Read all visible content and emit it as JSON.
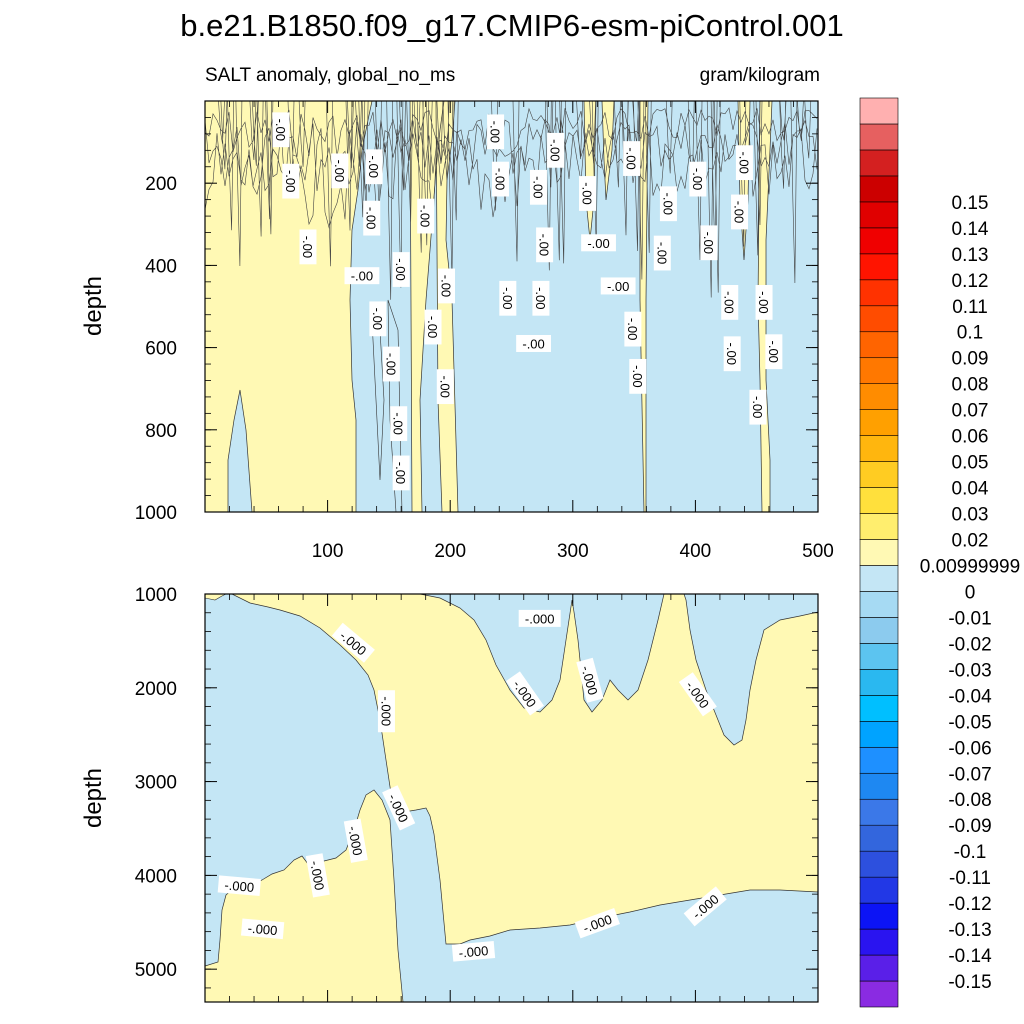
{
  "chart_data": {
    "type": "heatmap",
    "title": "b.e21.B1850.f09_g17.CMIP6-esm-piControl.001",
    "left_string": "SALT anomaly, global_no_ms",
    "right_string": "gram/kilogram",
    "colors": {
      "positive_fill": "#fff9b4",
      "negative_fill": "#c4e6f5",
      "contour_line": "#333333",
      "frame": "#000000"
    },
    "panels": [
      {
        "name": "upper",
        "ylabel": "depth",
        "ylim": [
          0,
          1000
        ],
        "xlim": [
          0,
          500
        ],
        "yticks": [
          200,
          400,
          600,
          800,
          1000
        ],
        "ytick_labels": [
          "200",
          "400",
          "600",
          "800",
          "1000"
        ],
        "xticks": [
          100,
          200,
          300,
          400,
          500
        ],
        "xtick_labels": [
          "100",
          "200",
          "300",
          "400",
          "500"
        ],
        "contour_label_text": "-.00",
        "contour_labels": [
          {
            "x": 62,
            "y": 70,
            "rot": 90
          },
          {
            "x": 70,
            "y": 195,
            "rot": 90
          },
          {
            "x": 84,
            "y": 355,
            "rot": 90
          },
          {
            "x": 110,
            "y": 170,
            "rot": 90
          },
          {
            "x": 138,
            "y": 160,
            "rot": 90
          },
          {
            "x": 136,
            "y": 285,
            "rot": 90
          },
          {
            "x": 128,
            "y": 425,
            "rot": 0
          },
          {
            "x": 160,
            "y": 410,
            "rot": 90
          },
          {
            "x": 141,
            "y": 530,
            "rot": 90
          },
          {
            "x": 152,
            "y": 640,
            "rot": 90
          },
          {
            "x": 158,
            "y": 785,
            "rot": 90
          },
          {
            "x": 160,
            "y": 905,
            "rot": 90
          },
          {
            "x": 180,
            "y": 280,
            "rot": 90
          },
          {
            "x": 197,
            "y": 450,
            "rot": 90
          },
          {
            "x": 186,
            "y": 550,
            "rot": 90
          },
          {
            "x": 196,
            "y": 695,
            "rot": 90
          },
          {
            "x": 237,
            "y": 75,
            "rot": 90
          },
          {
            "x": 241,
            "y": 190,
            "rot": 90
          },
          {
            "x": 247,
            "y": 480,
            "rot": 90
          },
          {
            "x": 268,
            "y": 590,
            "rot": 0
          },
          {
            "x": 272,
            "y": 210,
            "rot": 90
          },
          {
            "x": 277,
            "y": 350,
            "rot": 90
          },
          {
            "x": 274,
            "y": 480,
            "rot": 90
          },
          {
            "x": 286,
            "y": 120,
            "rot": 90
          },
          {
            "x": 312,
            "y": 225,
            "rot": 90
          },
          {
            "x": 321,
            "y": 345,
            "rot": 0
          },
          {
            "x": 337,
            "y": 450,
            "rot": 0
          },
          {
            "x": 348,
            "y": 140,
            "rot": 90
          },
          {
            "x": 349,
            "y": 555,
            "rot": 90
          },
          {
            "x": 353,
            "y": 670,
            "rot": 90
          },
          {
            "x": 378,
            "y": 250,
            "rot": 90
          },
          {
            "x": 373,
            "y": 370,
            "rot": 90
          },
          {
            "x": 402,
            "y": 190,
            "rot": 90
          },
          {
            "x": 411,
            "y": 345,
            "rot": 90
          },
          {
            "x": 428,
            "y": 490,
            "rot": 90
          },
          {
            "x": 430,
            "y": 615,
            "rot": 90
          },
          {
            "x": 436,
            "y": 270,
            "rot": 90
          },
          {
            "x": 440,
            "y": 150,
            "rot": 90
          },
          {
            "x": 456,
            "y": 490,
            "rot": 90
          },
          {
            "x": 464,
            "y": 610,
            "rot": 90
          },
          {
            "x": 451,
            "y": 745,
            "rot": 90
          }
        ]
      },
      {
        "name": "lower",
        "ylabel": "depth",
        "ylim": [
          1000,
          5350
        ],
        "xlim": [
          0,
          500
        ],
        "yticks": [
          1000,
          2000,
          3000,
          4000,
          5000
        ],
        "ytick_labels": [
          "1000",
          "2000",
          "3000",
          "4000",
          "5000"
        ],
        "contour_label_text": "-.000",
        "contour_labels": [
          {
            "x": 121,
            "y": 1520,
            "rot": 40
          },
          {
            "x": 148,
            "y": 2250,
            "rot": 90
          },
          {
            "x": 261,
            "y": 2060,
            "rot": 55
          },
          {
            "x": 273,
            "y": 1260,
            "rot": 0
          },
          {
            "x": 314,
            "y": 1920,
            "rot": 75
          },
          {
            "x": 402,
            "y": 2070,
            "rot": 55
          },
          {
            "x": 158,
            "y": 3280,
            "rot": 65
          },
          {
            "x": 123,
            "y": 3630,
            "rot": 80
          },
          {
            "x": 92,
            "y": 4000,
            "rot": 80
          },
          {
            "x": 28,
            "y": 4110,
            "rot": 5
          },
          {
            "x": 47,
            "y": 4570,
            "rot": 5
          },
          {
            "x": 219,
            "y": 4810,
            "rot": -5
          },
          {
            "x": 320,
            "y": 4510,
            "rot": -20
          },
          {
            "x": 408,
            "y": 4330,
            "rot": -40
          }
        ]
      }
    ],
    "colorbar": {
      "colors": [
        "#8a2be2",
        "#5a1fe8",
        "#2a14f0",
        "#0c14f5",
        "#2238e6",
        "#2d50de",
        "#3366dd",
        "#3b78e8",
        "#1e88f2",
        "#1e90ff",
        "#00a3ff",
        "#00bfff",
        "#2ab8f0",
        "#5cc4f0",
        "#8ccbee",
        "#a6daf3",
        "#c4e6f5",
        "#fff9b4",
        "#ffee6e",
        "#ffe03c",
        "#ffcc22",
        "#ffb60e",
        "#ffa000",
        "#ff8c00",
        "#ff7800",
        "#ff6400",
        "#ff4c00",
        "#ff3200",
        "#ff1400",
        "#f00000",
        "#e00000",
        "#cc0000",
        "#d42020",
        "#e66060",
        "#ffb0b0"
      ],
      "labels": [
        "-0.15",
        "-0.14",
        "-0.13",
        "-0.12",
        "-0.11",
        "-0.1",
        "-0.09",
        "-0.08",
        "-0.07",
        "-0.06",
        "-0.05",
        "-0.04",
        "-0.03",
        "-0.02",
        "-0.01",
        "0",
        "0.00999999",
        "0.02",
        "0.03",
        "0.04",
        "0.05",
        "0.06",
        "0.07",
        "0.08",
        "0.09",
        "0.1",
        "0.11",
        "0.12",
        "0.13",
        "0.14",
        "0.15"
      ]
    }
  }
}
